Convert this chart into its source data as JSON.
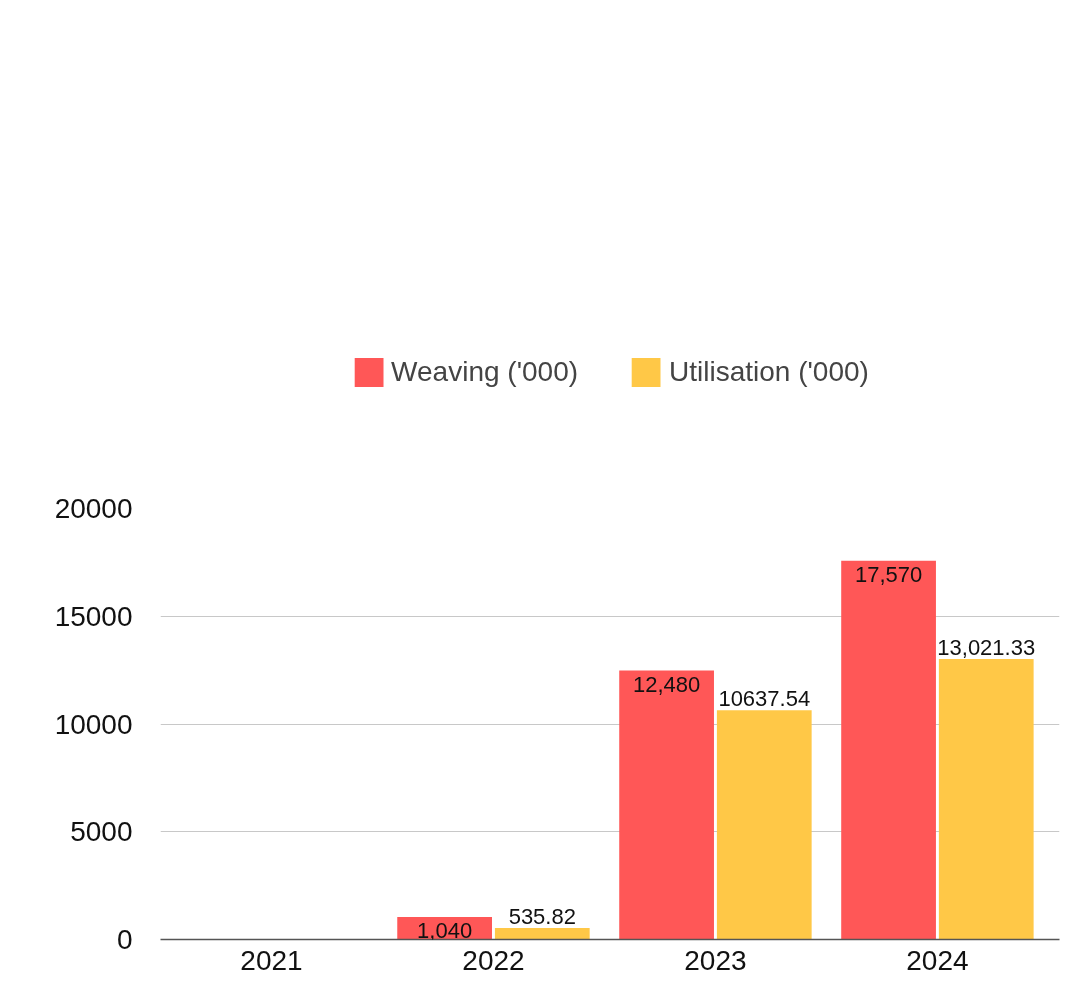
{
  "chart_data": {
    "type": "bar",
    "categories": [
      "2021",
      "2022",
      "2023",
      "2024"
    ],
    "series": [
      {
        "name": "Weaving ('000)",
        "color": "#ff5757",
        "values": [
          null,
          1040,
          12480,
          17570
        ],
        "value_labels": [
          null,
          "1,040",
          "12,480",
          "17,570"
        ]
      },
      {
        "name": "Utilisation ('000)",
        "color": "#ffc847",
        "values": [
          null,
          535.82,
          10637.54,
          13021.33
        ],
        "value_labels": [
          null,
          "535.82",
          "10637.54",
          "13,021.33"
        ]
      }
    ],
    "ylim": [
      0,
      20000
    ],
    "yticks": [
      0,
      5000,
      10000,
      15000,
      20000
    ],
    "grid": "y",
    "legend": "top"
  }
}
